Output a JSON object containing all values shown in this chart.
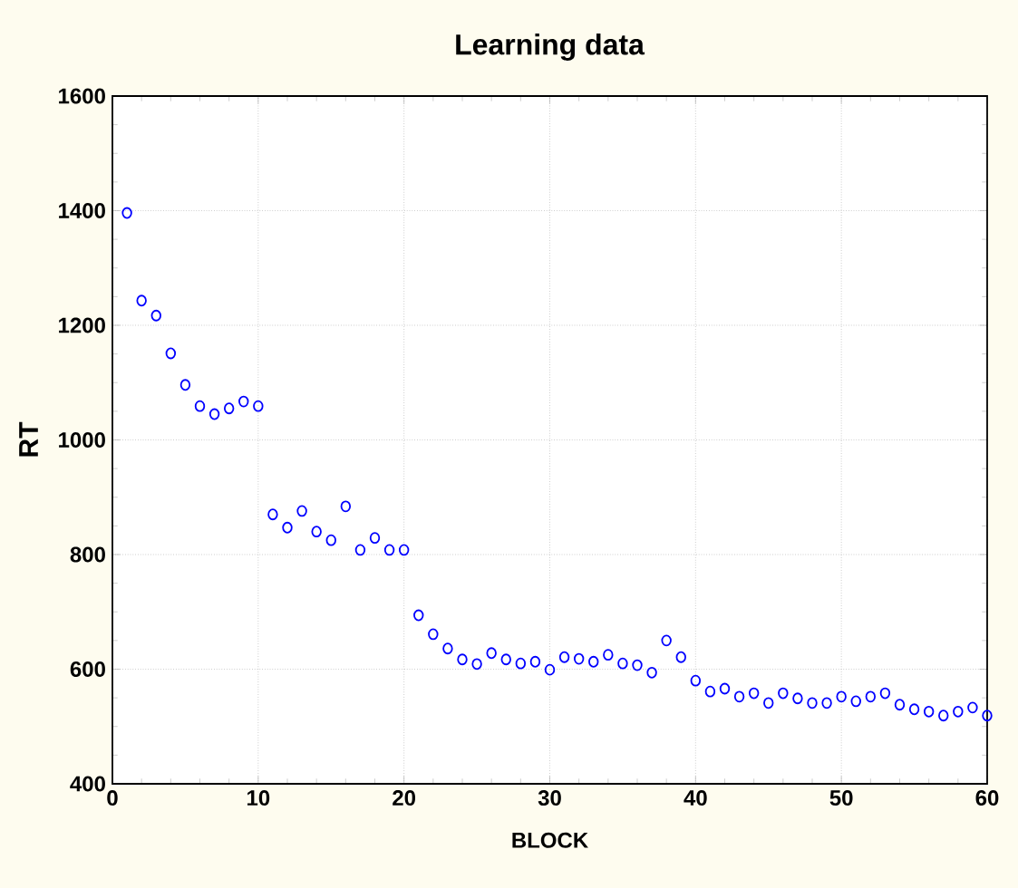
{
  "chart_data": {
    "type": "scatter",
    "title": "Learning data",
    "xlabel": "BLOCK",
    "ylabel": "RT",
    "x": [
      1,
      2,
      3,
      4,
      5,
      6,
      7,
      8,
      9,
      10,
      11,
      12,
      13,
      14,
      15,
      16,
      17,
      18,
      19,
      20,
      21,
      22,
      23,
      24,
      25,
      26,
      27,
      28,
      29,
      30,
      31,
      32,
      33,
      34,
      35,
      36,
      37,
      38,
      39,
      40,
      41,
      42,
      43,
      44,
      45,
      46,
      47,
      48,
      49,
      50,
      51,
      52,
      53,
      54,
      55,
      56,
      57,
      58,
      59,
      60
    ],
    "values": [
      1396,
      1243,
      1217,
      1151,
      1096,
      1059,
      1045,
      1055,
      1067,
      1059,
      870,
      847,
      876,
      840,
      825,
      884,
      808,
      829,
      808,
      808,
      694,
      661,
      636,
      617,
      609,
      628,
      617,
      610,
      613,
      599,
      621,
      618,
      613,
      625,
      610,
      607,
      594,
      650,
      621,
      580,
      561,
      566,
      552,
      558,
      541,
      558,
      549,
      541,
      541,
      552,
      544,
      552,
      558,
      538,
      530,
      526,
      519,
      526,
      533,
      519
    ],
    "color": "#0000ff",
    "marker": "circle",
    "grid": true,
    "xlim": [
      0,
      60
    ],
    "ylim": [
      400,
      1600
    ],
    "xticks": [
      0,
      10,
      20,
      30,
      40,
      50,
      60
    ],
    "yticks": [
      400,
      600,
      800,
      1000,
      1200,
      1400,
      1600
    ]
  }
}
